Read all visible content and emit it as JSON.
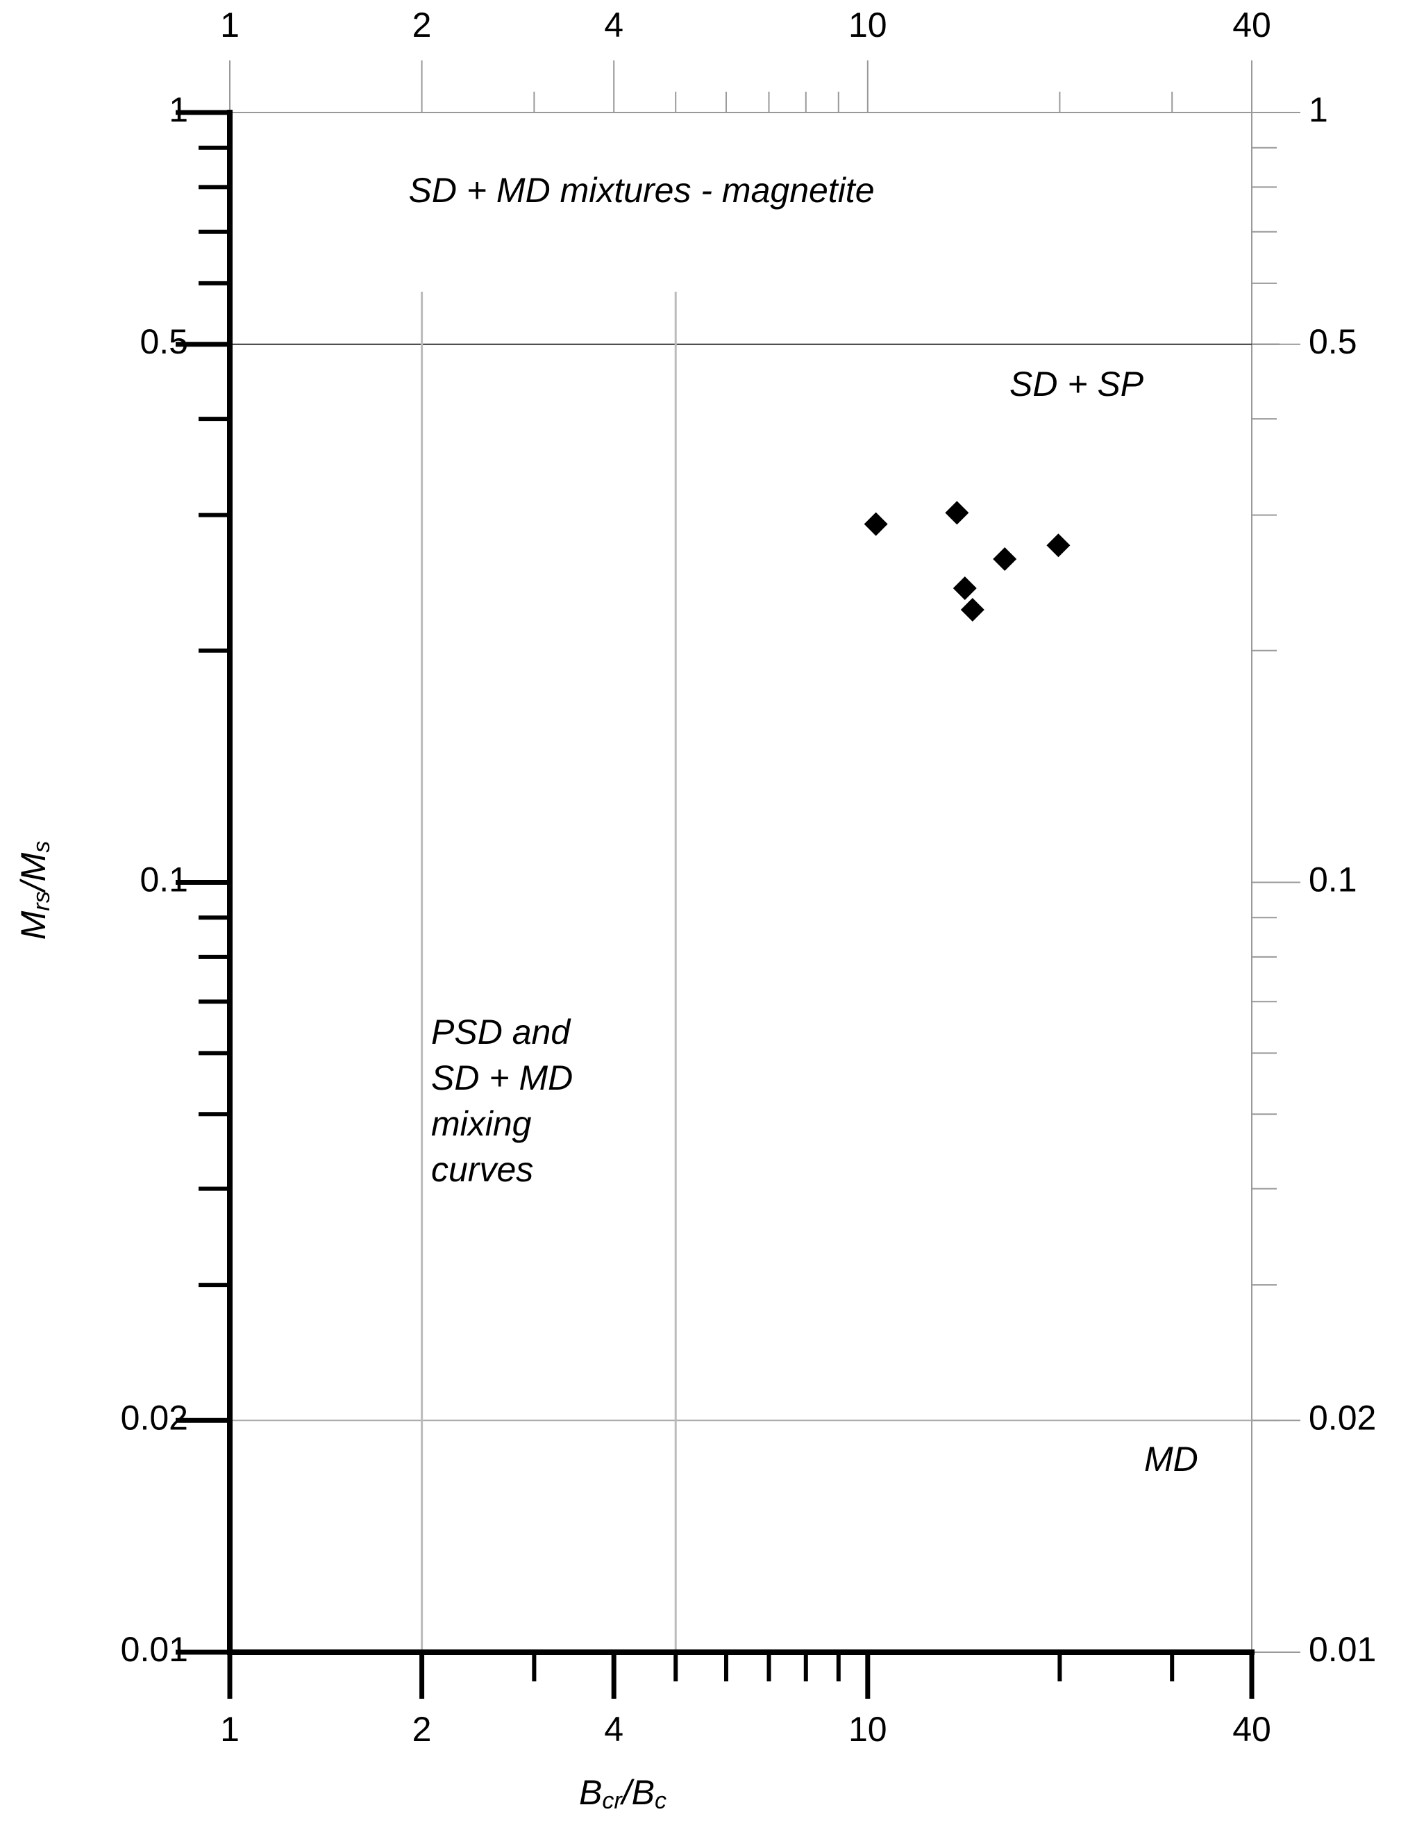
{
  "chart_data": {
    "type": "scatter",
    "xlabel": [
      {
        "text": "B"
      },
      {
        "text": "cr",
        "sub": true
      },
      {
        "text": "/B"
      },
      {
        "text": "c",
        "sub": true
      }
    ],
    "ylabel": [
      {
        "text": "M"
      },
      {
        "text": "rs",
        "sub": true
      },
      {
        "text": "/M"
      },
      {
        "text": "s",
        "sub": true
      }
    ],
    "xlog": true,
    "ylog": true,
    "xlim": [
      1,
      40
    ],
    "ylim": [
      0.01,
      1
    ],
    "xticks": [
      1,
      2,
      4,
      10,
      40
    ],
    "xminor_ticks": [
      3,
      5,
      6,
      7,
      8,
      9,
      20,
      30
    ],
    "yticks": [
      0.01,
      0.02,
      0.1,
      0.5,
      1
    ],
    "yminor_ticks": [
      0.03,
      0.04,
      0.05,
      0.06,
      0.07,
      0.08,
      0.09,
      0.2,
      0.3,
      0.4,
      0.6,
      0.7,
      0.8,
      0.9
    ],
    "hlines": [
      0.5,
      0.02
    ],
    "vlines": [
      2,
      5
    ],
    "color": "#000000",
    "x": [
      10.3,
      13.8,
      16.4,
      19.9,
      14.2,
      14.6
    ],
    "values": [
      0.292,
      0.302,
      0.263,
      0.274,
      0.241,
      0.226
    ],
    "annotations": [
      {
        "lines": [
          "SD + MD mixtures - magnetite"
        ]
      },
      {
        "lines": [
          "SD + SP"
        ]
      },
      {
        "lines": [
          "PSD and",
          "SD + MD",
          "mixing",
          "curves"
        ]
      },
      {
        "lines": [
          "MD"
        ]
      }
    ]
  }
}
